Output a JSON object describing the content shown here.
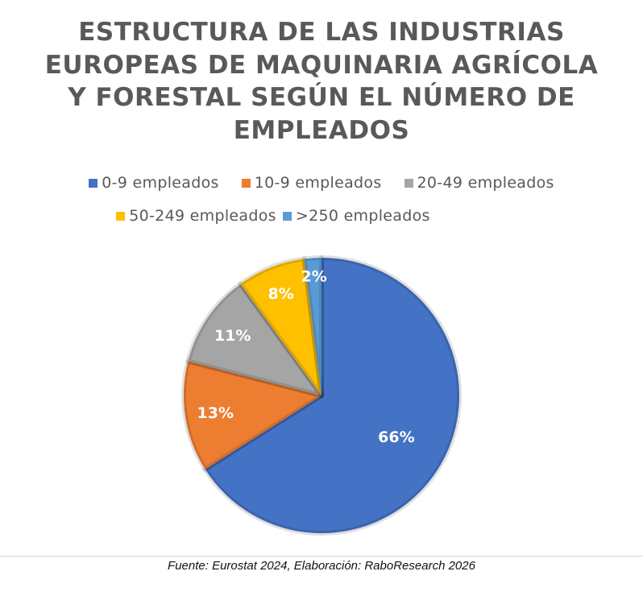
{
  "chart_data": {
    "type": "pie",
    "title_lines": [
      "ESTRUCTURA DE LAS INDUSTRIAS",
      "EUROPEAS DE MAQUINARIA AGRÍCOLA",
      "Y FORESTAL SEGÚN EL NÚMERO DE",
      "EMPLEADOS"
    ],
    "legend_position": "top",
    "slices": [
      {
        "label": "0-9 empleados",
        "value": 66,
        "data_label": "66%",
        "color": "#4472C4"
      },
      {
        "label": "10-9 empleados",
        "value": 13,
        "data_label": "13%",
        "color": "#ED7D31"
      },
      {
        "label": "20-49 empleados",
        "value": 11,
        "data_label": "11%",
        "color": "#A5A5A5"
      },
      {
        "label": "50-249 empleados",
        "value": 8,
        "data_label": "8%",
        "color": "#FFC000"
      },
      {
        "label": ">250 empleados",
        "value": 2,
        "data_label": "2%",
        "color": "#5B9BD5"
      }
    ]
  },
  "source": "Fuente: Eurostat 2024, Elaboración: RaboResearch 2026"
}
